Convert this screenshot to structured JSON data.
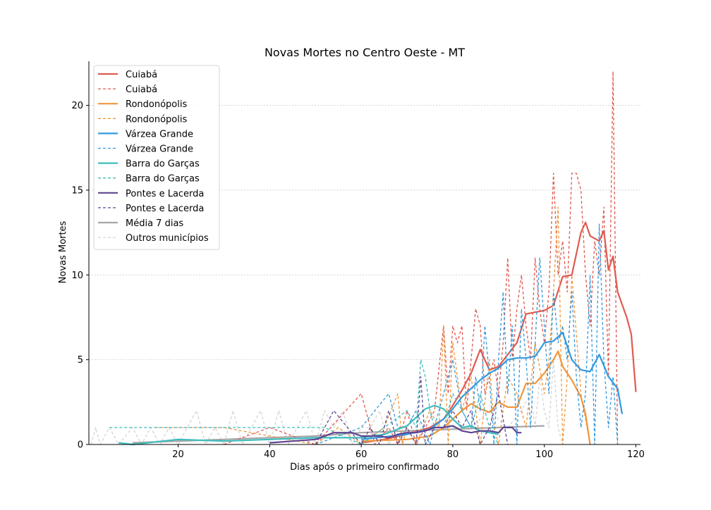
{
  "chart_data": {
    "type": "line",
    "title": "Novas Mortes no Centro Oeste - MT",
    "xlabel": "Dias após o primeiro confirmado",
    "ylabel": "Novas Mortes",
    "xlim": [
      0.5,
      121
    ],
    "ylim": [
      0,
      22.6
    ],
    "xticks": [
      20,
      40,
      60,
      80,
      100,
      120
    ],
    "yticks": [
      0,
      5,
      10,
      15,
      20
    ],
    "grid": "horizontal dotted",
    "legend_position": "upper-left",
    "legend": [
      {
        "label": "Cuiabá",
        "style": "solid",
        "color": "#e05a50"
      },
      {
        "label": "Cuiabá",
        "style": "dashed",
        "color": "#e05a50"
      },
      {
        "label": "Rondonópolis",
        "style": "solid",
        "color": "#f0963a"
      },
      {
        "label": "Rondonópolis",
        "style": "dashed",
        "color": "#f0963a"
      },
      {
        "label": "Várzea Grande",
        "style": "solid",
        "color": "#3399dd"
      },
      {
        "label": "Várzea Grande",
        "style": "dashed",
        "color": "#3399dd"
      },
      {
        "label": "Barra do Garças",
        "style": "solid",
        "color": "#3dbdbd"
      },
      {
        "label": "Barra do Garças",
        "style": "dashed",
        "color": "#3dbdbd"
      },
      {
        "label": "Pontes e Lacerda",
        "style": "solid",
        "color": "#5e4591"
      },
      {
        "label": "Pontes e Lacerda",
        "style": "dashed",
        "color": "#5e4591"
      },
      {
        "label": "Média 7 dias",
        "style": "solid",
        "color": "#a6a6a6"
      },
      {
        "label": "Outros municípios",
        "style": "dashed",
        "color": "#d4d4d4"
      }
    ],
    "series": [
      {
        "name": "Outros municípios",
        "kind": "daily",
        "color": "#d4d4d4",
        "x": [
          1,
          2,
          3,
          5,
          7,
          10,
          12,
          14,
          16,
          18,
          20,
          22,
          24,
          26,
          28,
          30,
          32,
          34,
          36,
          38,
          40,
          42,
          44,
          46,
          48,
          50,
          52,
          54,
          56,
          58,
          60,
          62,
          64,
          66,
          68,
          70,
          72,
          74,
          76,
          78,
          80,
          84,
          88,
          92,
          95,
          97,
          98,
          99,
          100,
          101,
          102,
          103,
          104
        ],
        "y": [
          0,
          1,
          0,
          1,
          0,
          1,
          0,
          1,
          0,
          1,
          0,
          1,
          2,
          0,
          1,
          0,
          2,
          0,
          1,
          2,
          0,
          2,
          0,
          1,
          2,
          0,
          2,
          1,
          2,
          0,
          1,
          1,
          2,
          0,
          1,
          1,
          2,
          0,
          1,
          1,
          1,
          1,
          2,
          1,
          2,
          3,
          1,
          4,
          2,
          1,
          5,
          1,
          0
        ]
      },
      {
        "name": "Média 7 dias",
        "kind": "avg",
        "color": "#a6a6a6",
        "x": [
          10,
          20,
          30,
          40,
          50,
          60,
          70,
          80,
          90,
          100
        ],
        "y": [
          0.1,
          0.2,
          0.3,
          0.4,
          0.5,
          0.7,
          0.8,
          0.9,
          1.0,
          1.1
        ]
      },
      {
        "name": "Cuiabá",
        "kind": "daily",
        "color": "#e05a50",
        "x": [
          30,
          40,
          50,
          60,
          63,
          66,
          68,
          70,
          72,
          74,
          76,
          78,
          79,
          80,
          81,
          82,
          83,
          84,
          85,
          86,
          87,
          88,
          89,
          90,
          91,
          92,
          93,
          94,
          95,
          96,
          97,
          98,
          99,
          100,
          101,
          102,
          103,
          104,
          105,
          106,
          107,
          108,
          109,
          110,
          111,
          112,
          113,
          114,
          115,
          116
        ],
        "y": [
          0,
          1,
          0,
          3,
          0,
          1,
          0,
          2,
          0,
          1,
          2,
          7,
          3,
          7,
          6,
          7,
          2,
          5,
          8,
          7,
          3,
          4,
          5,
          3,
          6,
          11,
          5,
          8,
          10,
          7,
          5,
          11,
          8,
          6,
          9,
          16,
          10,
          12,
          9,
          16,
          16,
          15,
          10,
          7,
          12,
          10,
          14,
          4,
          22,
          0
        ]
      },
      {
        "name": "Cuiabá",
        "kind": "avg",
        "color": "#e05a50",
        "x": [
          60,
          65,
          70,
          75,
          78,
          80,
          82,
          84,
          86,
          88,
          90,
          92,
          94,
          96,
          98,
          100,
          102,
          104,
          106,
          108,
          109,
          110,
          112,
          113,
          114,
          115,
          116,
          118,
          119,
          120
        ],
        "y": [
          0.1,
          0.3,
          0.6,
          1.0,
          1.5,
          2.3,
          3.2,
          4.2,
          5.6,
          4.4,
          4.6,
          5.3,
          6.0,
          7.7,
          7.8,
          7.9,
          8.2,
          9.9,
          10.0,
          12.5,
          13.1,
          12.3,
          12.0,
          12.6,
          10.3,
          11.1,
          9.0,
          7.5,
          6.5,
          3.1
        ]
      },
      {
        "name": "Rondonópolis",
        "kind": "daily",
        "color": "#f0963a",
        "x": [
          15,
          25,
          30,
          50,
          55,
          60,
          65,
          68,
          69,
          70,
          72,
          75,
          77,
          78,
          79,
          80,
          82,
          84,
          86,
          88,
          89,
          90,
          92,
          94,
          96,
          98,
          100,
          101,
          102,
          103,
          104,
          105,
          106,
          108,
          110
        ],
        "y": [
          1,
          1,
          1,
          0,
          1,
          0,
          1,
          3,
          0,
          1,
          0,
          2,
          1,
          7,
          0,
          6,
          2,
          4,
          0,
          5,
          1,
          0,
          4,
          3,
          1,
          6,
          3,
          5,
          9,
          14,
          0,
          4,
          10,
          3,
          0
        ],
        "endpoint": true
      },
      {
        "name": "Rondonópolis",
        "kind": "avg",
        "color": "#f0963a",
        "x": [
          60,
          70,
          75,
          78,
          80,
          82,
          84,
          86,
          88,
          90,
          92,
          94,
          96,
          98,
          100,
          102,
          103,
          104,
          106,
          108,
          109,
          110
        ],
        "y": [
          0.2,
          0.3,
          0.5,
          1.0,
          1.5,
          2.0,
          2.4,
          2.1,
          1.9,
          2.5,
          2.2,
          2.2,
          3.6,
          3.6,
          4.2,
          5.0,
          5.5,
          4.6,
          3.8,
          2.8,
          1.8,
          0
        ]
      },
      {
        "name": "Várzea Grande",
        "kind": "daily",
        "color": "#3399dd",
        "x": [
          50,
          60,
          66,
          68,
          70,
          72,
          75,
          78,
          80,
          82,
          84,
          85,
          86,
          87,
          88,
          89,
          90,
          91,
          92,
          93,
          94,
          95,
          96,
          97,
          98,
          99,
          100,
          101,
          102,
          103,
          104,
          105,
          106,
          107,
          108,
          109,
          110,
          111,
          112,
          113,
          114,
          115,
          116
        ],
        "y": [
          0,
          1,
          3,
          1,
          1,
          2,
          0,
          3,
          5,
          2,
          1,
          4,
          2,
          7,
          4,
          0,
          5,
          9,
          3,
          7,
          0,
          8,
          5,
          1,
          6,
          11,
          7,
          3,
          9,
          6,
          7,
          5,
          9,
          4,
          1,
          3,
          10,
          0,
          13,
          5,
          1,
          4,
          0
        ]
      },
      {
        "name": "Várzea Grande",
        "kind": "avg",
        "color": "#3399dd",
        "x": [
          60,
          70,
          75,
          78,
          80,
          82,
          84,
          86,
          88,
          90,
          92,
          94,
          96,
          98,
          100,
          102,
          104,
          106,
          108,
          110,
          112,
          114,
          116,
          117
        ],
        "y": [
          0.3,
          0.6,
          0.9,
          1.5,
          2.1,
          2.8,
          3.3,
          3.8,
          4.2,
          4.5,
          5.0,
          5.1,
          5.1,
          5.2,
          6.0,
          6.1,
          6.6,
          5.0,
          4.4,
          4.3,
          5.3,
          4.0,
          3.3,
          1.8
        ]
      },
      {
        "name": "Barra do Garças",
        "kind": "daily",
        "color": "#3dbdbd",
        "x": [
          5,
          15,
          26,
          38,
          52,
          60,
          65,
          70,
          72,
          73,
          74,
          75,
          76,
          78,
          80,
          82,
          84,
          86,
          88,
          90
        ],
        "y": [
          1,
          1,
          1,
          1,
          1,
          0,
          1,
          2,
          1,
          5,
          4,
          2,
          1,
          1,
          3,
          2,
          1,
          3,
          1,
          0
        ]
      },
      {
        "name": "Barra do Garças",
        "kind": "avg",
        "color": "#3dbdbd",
        "x": [
          7,
          10,
          20,
          30,
          40,
          50,
          60,
          65,
          70,
          74,
          76,
          78,
          80,
          82,
          84,
          86,
          88,
          90
        ],
        "y": [
          0.1,
          0.0,
          0.3,
          0.2,
          0.3,
          0.4,
          0.4,
          0.6,
          1.1,
          2.1,
          2.3,
          2.1,
          1.5,
          1.0,
          1.1,
          0.8,
          0.7,
          0.6
        ]
      },
      {
        "name": "Pontes e Lacerda",
        "kind": "daily",
        "color": "#5e4591",
        "x": [
          50,
          54,
          60,
          62,
          64,
          66,
          68,
          70,
          72,
          73,
          74,
          76,
          78,
          80,
          82,
          84,
          86,
          88,
          90,
          92
        ],
        "y": [
          0,
          2,
          0,
          1,
          0,
          2,
          0,
          1,
          0,
          4,
          0,
          1,
          1,
          2,
          1,
          2,
          0,
          1,
          3,
          0
        ]
      },
      {
        "name": "Pontes e Lacerda",
        "kind": "avg",
        "color": "#5e4591",
        "x": [
          40,
          45,
          50,
          54,
          56,
          58,
          60,
          64,
          66,
          68,
          70,
          72,
          74,
          76,
          78,
          80,
          82,
          84,
          86,
          88,
          90,
          91,
          92,
          93,
          94,
          95
        ],
        "y": [
          0.1,
          0.2,
          0.3,
          0.7,
          0.7,
          0.7,
          0.5,
          0.5,
          0.4,
          0.6,
          0.7,
          0.7,
          0.8,
          1.0,
          1.0,
          1.1,
          0.8,
          0.7,
          0.8,
          0.8,
          0.7,
          1.0,
          1.0,
          1.0,
          0.7,
          0.7
        ]
      }
    ]
  }
}
